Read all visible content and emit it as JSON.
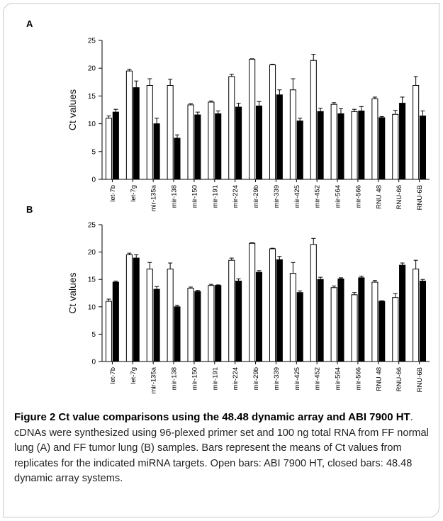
{
  "panels": [
    {
      "letter": "A"
    },
    {
      "letter": "B"
    }
  ],
  "caption": {
    "label": "Figure 2",
    "title": "Ct value comparisons using the 48.48 dynamic array and ABI 7900 HT",
    "body": ". cDNAs were synthesized using 96-plexed primer set and 100 ng total RNA from FF normal lung (A) and FF tumor lung (B) samples. Bars represent the means of Ct values from replicates for the indicated miRNA targets. Open bars: ABI 7900 HT, closed bars: 48.48 dynamic array systems."
  },
  "colors": {
    "open": "#ffffff",
    "closed": "#000000",
    "axis": "#000000"
  },
  "chart_data": [
    {
      "type": "bar",
      "panel": "A",
      "ylabel": "Ct values",
      "xlabel": "",
      "ylim": [
        0,
        25
      ],
      "yticks": [
        0,
        5,
        10,
        15,
        20,
        25
      ],
      "grid": false,
      "categories": [
        "let-7b",
        "let-7g",
        "mir-135a",
        "mir-138",
        "mir-150",
        "mir-191",
        "mir-224",
        "mir-29b",
        "mir-339",
        "mir-425",
        "mir-452",
        "mir-564",
        "mir-566",
        "RNU 48",
        "RNU-66",
        "RNU-6B"
      ],
      "series": [
        {
          "style": "open",
          "values": [
            11.0,
            19.5,
            16.9,
            16.9,
            13.4,
            13.9,
            18.5,
            21.6,
            20.6,
            16.1,
            21.4,
            13.5,
            12.2,
            14.5,
            11.7,
            16.9
          ],
          "errors": [
            0.4,
            0.3,
            1.2,
            1.1,
            0.2,
            0.2,
            0.4,
            0.1,
            0.1,
            2.0,
            1.1,
            0.3,
            0.4,
            0.3,
            0.7,
            1.6
          ]
        },
        {
          "style": "closed",
          "values": [
            12.1,
            16.5,
            10.0,
            7.4,
            11.6,
            11.8,
            13.0,
            13.2,
            15.2,
            10.5,
            12.2,
            11.8,
            12.3,
            11.1,
            13.7,
            11.4
          ],
          "errors": [
            0.5,
            1.2,
            1.0,
            0.6,
            0.5,
            0.5,
            0.7,
            0.8,
            0.9,
            0.5,
            0.6,
            0.9,
            0.8,
            0.2,
            1.1,
            0.9
          ]
        }
      ]
    },
    {
      "type": "bar",
      "panel": "B",
      "ylabel": "Ct values",
      "xlabel": "",
      "ylim": [
        0,
        25
      ],
      "yticks": [
        0,
        5,
        10,
        15,
        20,
        25
      ],
      "grid": false,
      "categories": [
        "let-7b",
        "let-7g",
        "mir-135a",
        "mir-138",
        "mir-150",
        "mir-191",
        "mir-224",
        "mir-29b",
        "mir-339",
        "mir-425",
        "mir-452",
        "mir-564",
        "mir-566",
        "RNU 48",
        "RNU-66",
        "RNU-6B"
      ],
      "series": [
        {
          "style": "open",
          "values": [
            11.0,
            19.5,
            16.9,
            16.9,
            13.4,
            13.9,
            18.5,
            21.6,
            20.6,
            16.1,
            21.4,
            13.5,
            12.2,
            14.5,
            11.7,
            16.9
          ],
          "errors": [
            0.4,
            0.3,
            1.2,
            1.1,
            0.2,
            0.2,
            0.4,
            0.1,
            0.1,
            2.0,
            1.1,
            0.3,
            0.4,
            0.3,
            0.7,
            1.6
          ]
        },
        {
          "style": "closed",
          "values": [
            14.5,
            18.9,
            13.2,
            10.0,
            12.8,
            13.9,
            14.7,
            16.3,
            18.6,
            12.6,
            15.0,
            15.1,
            15.3,
            11.0,
            17.6,
            14.7
          ],
          "errors": [
            0.2,
            0.6,
            0.5,
            0.3,
            0.2,
            0.1,
            0.4,
            0.3,
            0.6,
            0.3,
            0.4,
            0.2,
            0.3,
            0.1,
            0.4,
            0.3
          ]
        }
      ]
    }
  ]
}
